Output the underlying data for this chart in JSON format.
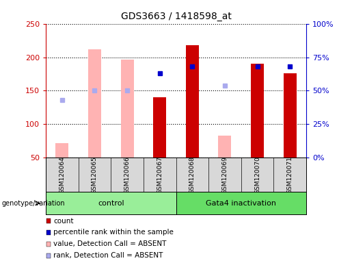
{
  "title": "GDS3663 / 1418598_at",
  "samples": [
    "GSM120064",
    "GSM120065",
    "GSM120066",
    "GSM120067",
    "GSM120068",
    "GSM120069",
    "GSM120070",
    "GSM120071"
  ],
  "count_values": [
    null,
    null,
    null,
    140,
    218,
    null,
    190,
    176
  ],
  "count_color": "#cc0000",
  "absent_value_values": [
    72,
    212,
    196,
    null,
    null,
    83,
    null,
    null
  ],
  "absent_value_color": "#ffb3b3",
  "percentile_rank_values": [
    null,
    null,
    null,
    63,
    68,
    null,
    68,
    68
  ],
  "percentile_rank_color": "#0000cc",
  "absent_rank_values": [
    43,
    50,
    50,
    null,
    null,
    54,
    null,
    null
  ],
  "absent_rank_color": "#aaaaee",
  "ylim_left": [
    50,
    250
  ],
  "ylim_right": [
    0,
    100
  ],
  "yticks_left": [
    50,
    100,
    150,
    200,
    250
  ],
  "yticks_right": [
    0,
    25,
    50,
    75,
    100
  ],
  "yticklabels_right": [
    "0%",
    "25%",
    "50%",
    "75%",
    "100%"
  ],
  "left_axis_color": "#cc0000",
  "right_axis_color": "#0000cc",
  "groups": [
    {
      "label": "control",
      "samples": [
        0,
        1,
        2,
        3
      ],
      "color": "#99ee99"
    },
    {
      "label": "Gata4 inactivation",
      "samples": [
        4,
        5,
        6,
        7
      ],
      "color": "#66dd66"
    }
  ],
  "group_label_text": "genotype/variation",
  "legend_items": [
    {
      "label": "count",
      "color": "#cc0000"
    },
    {
      "label": "percentile rank within the sample",
      "color": "#0000cc"
    },
    {
      "label": "value, Detection Call = ABSENT",
      "color": "#ffb3b3"
    },
    {
      "label": "rank, Detection Call = ABSENT",
      "color": "#aaaaee"
    }
  ],
  "bar_width": 0.4,
  "grid_color": "black",
  "background_color": "#d8d8d8"
}
